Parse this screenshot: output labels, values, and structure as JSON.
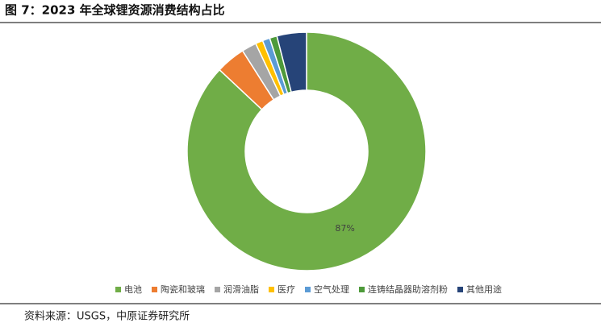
{
  "title": "图 7：2023 年全球锂资源消费结构占比",
  "source": "资料来源：USGS，中原证券研究所",
  "chart_data": {
    "type": "donut",
    "categories": [
      "电池",
      "陶瓷和玻璃",
      "润滑油脂",
      "医疗",
      "空气处理",
      "连铸结晶器助溶剂粉",
      "其他用途"
    ],
    "values": [
      87,
      4,
      2,
      1,
      1,
      1,
      4
    ],
    "value_labels": [
      "87%",
      null,
      null,
      null,
      null,
      null,
      null
    ],
    "colors": [
      "#70ad47",
      "#ed7d31",
      "#a5a5a5",
      "#ffc000",
      "#5b9bd5",
      "#4e9a3a",
      "#264478"
    ],
    "legend": "bottom"
  }
}
